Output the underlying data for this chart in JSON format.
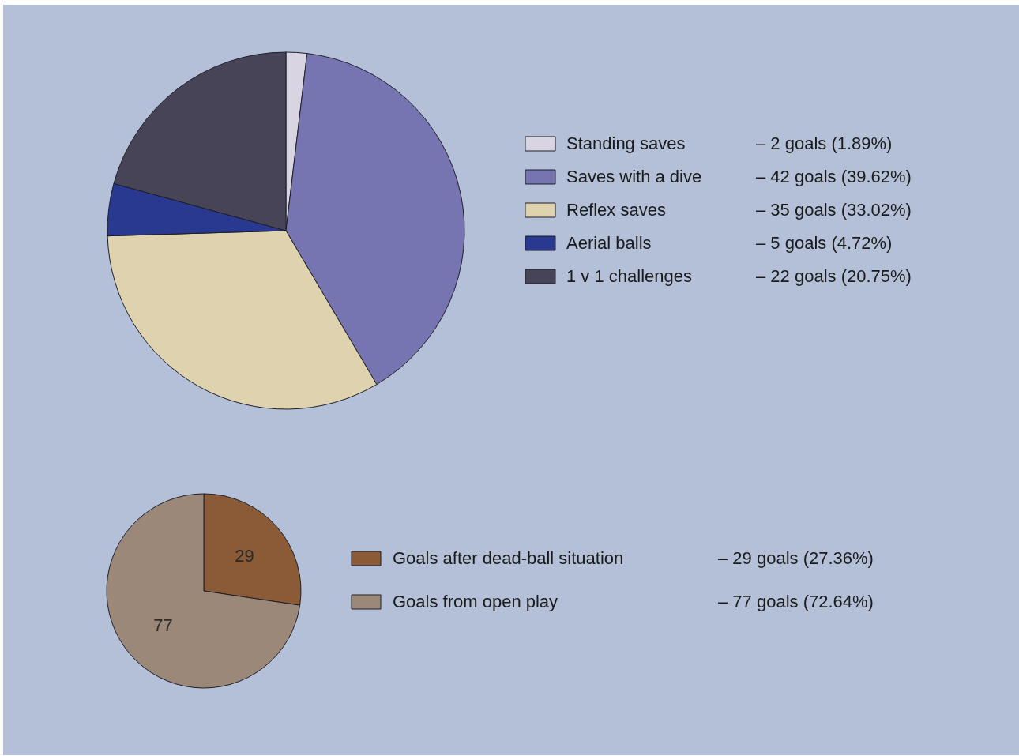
{
  "chart_data": [
    {
      "type": "pie",
      "categories": [
        "Standing saves",
        "Saves with a dive",
        "Reflex saves",
        "Aerial balls",
        "1 v 1 challenges"
      ],
      "values": [
        1.89,
        39.62,
        33.02,
        4.72,
        20.75
      ],
      "colors": [
        "#d8d4e2",
        "#7775b1",
        "#ded3ae",
        "#293990",
        "#484457"
      ],
      "annotations": [
        "–   2 goals  (1.89%)",
        "– 42 goals  (39.62%)",
        "– 35 goals  (33.02%)",
        "–   5 goals  (4.72%)",
        "– 22 goals  (20.75%)"
      ],
      "legend": "right"
    },
    {
      "type": "pie",
      "categories": [
        "Goals after dead-ball situation",
        "Goals from open play"
      ],
      "values": [
        29,
        77
      ],
      "colors": [
        "#8b5a36",
        "#9c8878"
      ],
      "annotations": [
        "– 29 goals   (27.36%)",
        "– 77 goals   (72.64%)"
      ],
      "legend": "right",
      "data_labels": true
    }
  ]
}
